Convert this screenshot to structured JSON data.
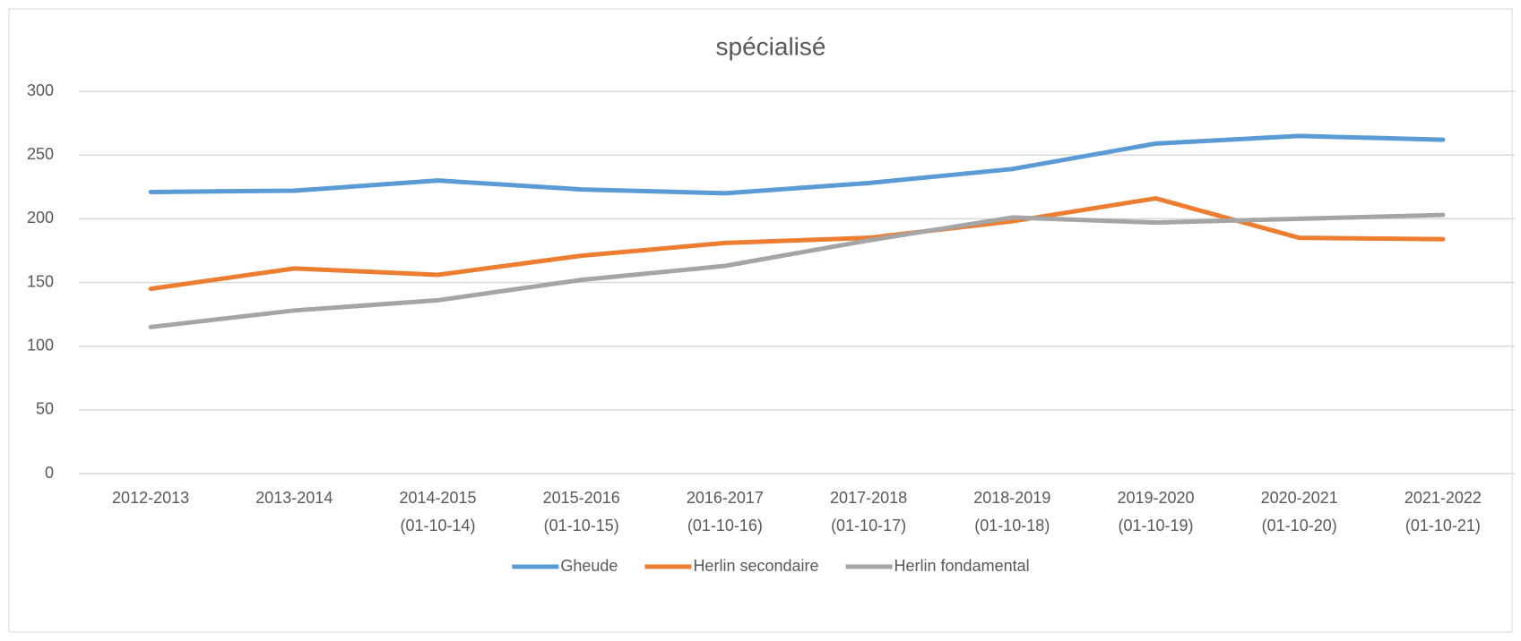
{
  "chart_data": {
    "type": "line",
    "title": "spécialisé",
    "categories": [
      "2012-2013",
      "2013-2014",
      "2014-2015\n(01-10-14)",
      "2015-2016\n(01-10-15)",
      "2016-2017\n(01-10-16)",
      "2017-2018\n(01-10-17)",
      "2018-2019\n(01-10-18)",
      "2019-2020\n(01-10-19)",
      "2020-2021\n(01-10-20)",
      "2021-2022\n(01-10-21)"
    ],
    "series": [
      {
        "name": "Gheude",
        "color": "#5b9bd5",
        "values": [
          221,
          222,
          230,
          223,
          220,
          228,
          239,
          259,
          265,
          262
        ]
      },
      {
        "name": "Herlin secondaire",
        "color": "#ed7d31",
        "values": [
          145,
          161,
          156,
          171,
          181,
          185,
          198,
          216,
          185,
          184
        ]
      },
      {
        "name": "Herlin fondamental",
        "color": "#a5a5a5",
        "values": [
          115,
          128,
          136,
          152,
          163,
          183,
          201,
          197,
          200,
          203
        ]
      }
    ],
    "ylim": [
      0,
      300
    ],
    "yticks": [
      0,
      50,
      100,
      150,
      200,
      250,
      300
    ],
    "grid": true,
    "legend": "bottom"
  }
}
